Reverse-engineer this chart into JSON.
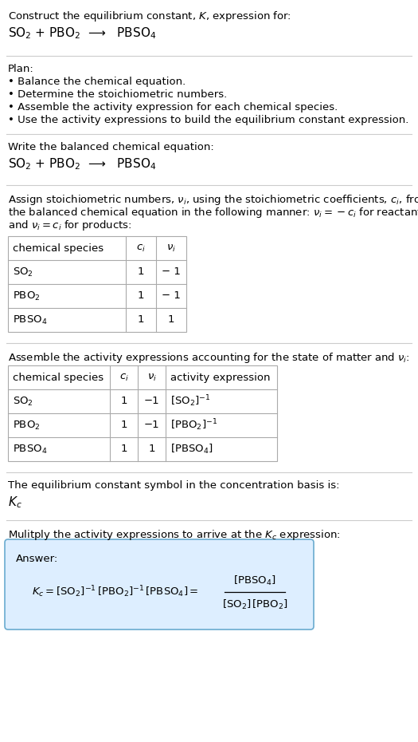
{
  "title_line1": "Construct the equilibrium constant, $K$, expression for:",
  "title_line2": "SO$_2$ + PBO$_2$  ⟶   PBSO$_4$",
  "separator_color": "#cccccc",
  "bg_color": "#ffffff",
  "text_color": "#000000",
  "plan_header": "Plan:",
  "plan_bullets": [
    "• Balance the chemical equation.",
    "• Determine the stoichiometric numbers.",
    "• Assemble the activity expression for each chemical species.",
    "• Use the activity expressions to build the equilibrium constant expression."
  ],
  "balanced_eq_header": "Write the balanced chemical equation:",
  "balanced_eq": "SO$_2$ + PBO$_2$  ⟶   PBSO$_4$",
  "stoich_intro_lines": [
    "Assign stoichiometric numbers, $\\nu_i$, using the stoichiometric coefficients, $c_i$, from",
    "the balanced chemical equation in the following manner: $\\nu_i = -c_i$ for reactants",
    "and $\\nu_i = c_i$ for products:"
  ],
  "table1_headers": [
    "chemical species",
    "$c_i$",
    "$\\nu_i$"
  ],
  "table1_rows": [
    [
      "SO$_2$",
      "1",
      "− 1"
    ],
    [
      "PBO$_2$",
      "1",
      "− 1"
    ],
    [
      "PBSO$_4$",
      "1",
      "1"
    ]
  ],
  "activity_intro": "Assemble the activity expressions accounting for the state of matter and $\\nu_i$:",
  "table2_headers": [
    "chemical species",
    "$c_i$",
    "$\\nu_i$",
    "activity expression"
  ],
  "table2_rows": [
    [
      "SO$_2$",
      "1",
      "−1",
      "$[\\mathrm{SO_2}]^{-1}$"
    ],
    [
      "PBO$_2$",
      "1",
      "−1",
      "$[\\mathrm{PBO_2}]^{-1}$"
    ],
    [
      "PBSO$_4$",
      "1",
      "1",
      "$[\\mathrm{PBSO_4}]$"
    ]
  ],
  "kc_intro": "The equilibrium constant symbol in the concentration basis is:",
  "kc_symbol": "$K_c$",
  "multiply_intro": "Mulitply the activity expressions to arrive at the $K_c$ expression:",
  "answer_box_color": "#ddeeff",
  "answer_box_border": "#6aabcf",
  "answer_label": "Answer:"
}
